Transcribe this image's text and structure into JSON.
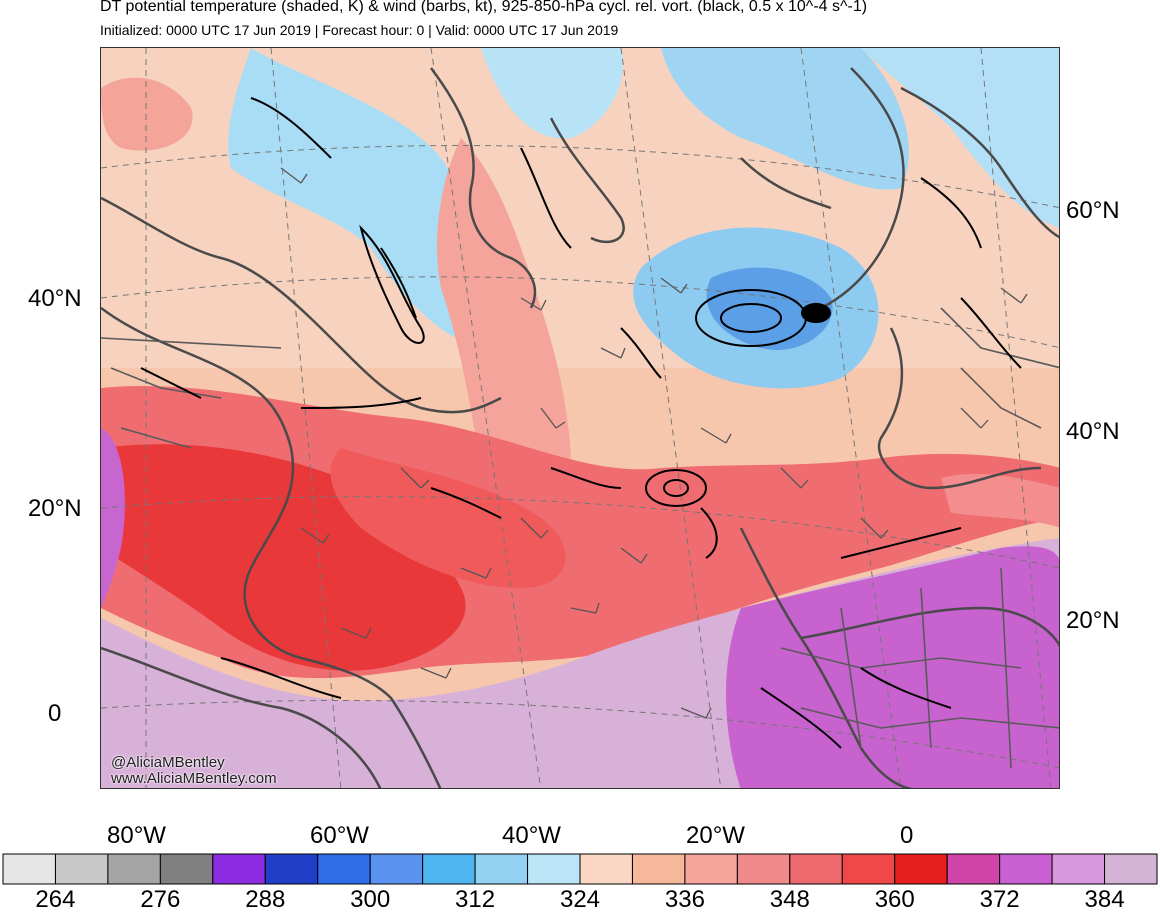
{
  "header": {
    "title": "DT potential temperature (shaded, K) & wind (barbs, kt), 925-850-hPa cycl. rel. vort. (black, 0.5 x 10^-4 s^-1)",
    "subtitle": "Initialized: 0000 UTC 17 Jun 2019 | Forecast hour: 0 | Valid: 0000 UTC 17 Jun 2019"
  },
  "map": {
    "left_lat_labels": [
      "40°N",
      "20°N",
      "0"
    ],
    "right_lat_labels": [
      "60°N",
      "40°N",
      "20°N"
    ],
    "lon_labels": [
      "80°W",
      "60°W",
      "40°W",
      "20°W",
      "0"
    ],
    "credit_handle": "@AliciaMBentley",
    "credit_url": "www.AliciaMBentley.com"
  },
  "colorbar": {
    "colors": [
      "#e6e6e6",
      "#c8c8c8",
      "#a5a5a5",
      "#808080",
      "#8b2be2",
      "#1f3fc8",
      "#2f6ee8",
      "#5b93f0",
      "#4fb5f0",
      "#93d2f2",
      "#b9e5f6",
      "#f9d7c4",
      "#f6b89b",
      "#f5a59a",
      "#f08a8a",
      "#ef6a6e",
      "#f04848",
      "#e61e1e",
      "#cf44a8",
      "#c960d4",
      "#d998dd",
      "#d5b3d7"
    ],
    "tick_labels": [
      "264",
      "276",
      "288",
      "300",
      "312",
      "324",
      "336",
      "348",
      "360",
      "372",
      "384"
    ]
  }
}
